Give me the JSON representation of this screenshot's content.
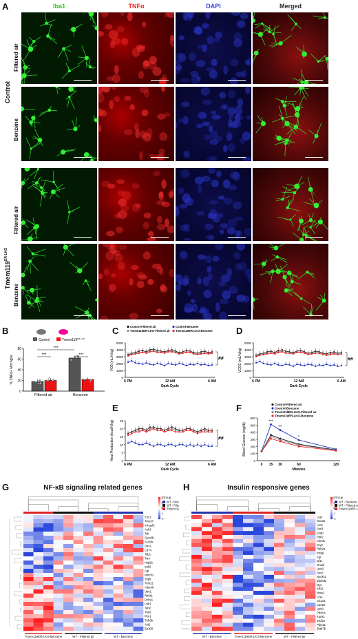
{
  "panel_labels": [
    "A",
    "B",
    "C",
    "D",
    "E",
    "F",
    "G",
    "H"
  ],
  "panel_a": {
    "columns": [
      {
        "label": "Iba1",
        "color": "#22cc22"
      },
      {
        "label": "TNFα",
        "color": "#ee2222"
      },
      {
        "label": "DAPI",
        "color": "#3344dd"
      },
      {
        "label": "Merged",
        "color": "#222222"
      }
    ],
    "groups": [
      {
        "label": "Control",
        "rows": [
          "Filtered air",
          "Benzene"
        ]
      },
      {
        "label": "Tmem119",
        "label_sup": "ER-LKO",
        "rows": [
          "Filtered air",
          "Benzene"
        ]
      }
    ]
  },
  "panel_b": {
    "ylabel": "% TNFα+ Microglia",
    "legend": [
      {
        "name": "Control",
        "color": "#555555"
      },
      {
        "name": "Tmem119",
        "sup": "ER-LKO",
        "color": "#ee1111"
      }
    ],
    "sig": [
      "***",
      "***",
      "***"
    ],
    "chart_data": {
      "type": "bar",
      "categories": [
        "Filtered air",
        "Benzene"
      ],
      "series": [
        {
          "name": "Control",
          "values": [
            18,
            62
          ]
        },
        {
          "name": "Tmem119ER-LKO",
          "values": [
            20,
            22
          ]
        }
      ],
      "ylim": [
        0,
        80
      ],
      "yticks": [
        0,
        20,
        40,
        60,
        80
      ]
    }
  },
  "panel_c": {
    "legend": [
      "Control-Filtered air",
      "Control-Benzene",
      "Tmem119ER-LKO-Filtered air",
      "Tmem119ER-LKO-Benzene"
    ],
    "ylabel": "VO2 (mL/h/kg)",
    "xlabel": "Dark Cycle",
    "xticks": [
      "6 PM",
      "12 AM",
      "6 AM"
    ],
    "yticks": [
      "0",
      "1000",
      "2000",
      "3000",
      "4000",
      "5000"
    ],
    "sig": "##",
    "chart_data": {
      "type": "line",
      "ylim": [
        0,
        5000
      ],
      "series": [
        {
          "name": "Control-Filtered air",
          "color": "#111111",
          "values": [
            3300,
            3500,
            3600,
            3800,
            3900,
            3700,
            4000,
            4100,
            3900,
            3800,
            3700,
            3900,
            4000,
            3800,
            3600,
            3700,
            3900,
            3800,
            3600,
            3500,
            3700,
            3800,
            3600,
            3700
          ]
        },
        {
          "name": "Control-Benzene",
          "color": "#2233bb",
          "values": [
            2200,
            2400,
            2100,
            2000,
            1900,
            2100,
            1900,
            1800,
            2000,
            1900,
            1700,
            2000,
            1900,
            1800,
            2000,
            1900,
            1700,
            1900,
            1800,
            2000,
            1800,
            1900,
            1700,
            1800
          ]
        },
        {
          "name": "Tmem119ER-LKO-Filtered air",
          "color": "#888888",
          "values": [
            3200,
            3400,
            3500,
            3600,
            3700,
            3600,
            3800,
            3900,
            3700,
            3700,
            3600,
            3800,
            3800,
            3700,
            3500,
            3600,
            3700,
            3700,
            3500,
            3400,
            3500,
            3600,
            3500,
            3600
          ]
        },
        {
          "name": "Tmem119ER-LKO-Benzene",
          "color": "#ee2222",
          "values": [
            3100,
            3300,
            3400,
            3500,
            3600,
            3500,
            3700,
            3800,
            3600,
            3600,
            3500,
            3700,
            3700,
            3600,
            3400,
            3500,
            3600,
            3600,
            3400,
            3300,
            3400,
            3500,
            3400,
            3500
          ]
        }
      ]
    }
  },
  "panel_d": {
    "ylabel": "VCO2 (mL/h/kg)",
    "xlabel": "Dark Cycle",
    "xticks": [
      "6 PM",
      "12 AM",
      "6 AM"
    ],
    "yticks": [
      "0",
      "1000",
      "2000",
      "3000",
      "4000",
      "5000"
    ],
    "sig": "##",
    "chart_data": {
      "type": "line",
      "ylim": [
        0,
        5000
      ],
      "series": [
        {
          "name": "Control-Filtered air",
          "color": "#111111",
          "values": [
            3200,
            3400,
            3500,
            3700,
            3800,
            3600,
            3900,
            4000,
            3800,
            3700,
            3600,
            3800,
            3900,
            3700,
            3500,
            3600,
            3800,
            3700,
            3500,
            3400,
            3600,
            3700,
            3500,
            3600
          ]
        },
        {
          "name": "Control-Benzene",
          "color": "#2233bb",
          "values": [
            2100,
            2300,
            2000,
            1900,
            1800,
            2000,
            1800,
            1700,
            1900,
            1800,
            1600,
            1900,
            1800,
            1700,
            1900,
            1800,
            1600,
            1800,
            1700,
            1900,
            1700,
            1800,
            1600,
            1700
          ]
        },
        {
          "name": "Tmem119ER-LKO-Filtered air",
          "color": "#888888",
          "values": [
            3100,
            3300,
            3400,
            3500,
            3600,
            3500,
            3700,
            3800,
            3600,
            3600,
            3500,
            3700,
            3700,
            3600,
            3400,
            3500,
            3600,
            3600,
            3400,
            3300,
            3400,
            3500,
            3400,
            3500
          ]
        },
        {
          "name": "Tmem119ER-LKO-Benzene",
          "color": "#ee2222",
          "values": [
            3000,
            3200,
            3300,
            3400,
            3500,
            3400,
            3600,
            3700,
            3500,
            3500,
            3400,
            3600,
            3600,
            3500,
            3300,
            3400,
            3500,
            3500,
            3300,
            3200,
            3300,
            3400,
            3300,
            3400
          ]
        }
      ]
    }
  },
  "panel_e": {
    "ylabel": "Heat Production (kcal/h/kg)",
    "xlabel": "Dark Cycle",
    "xticks": [
      "6 PM",
      "12 AM",
      "6 AM"
    ],
    "yticks": [
      "0",
      "5",
      "10",
      "15",
      "20",
      "25"
    ],
    "sig": "##",
    "chart_data": {
      "type": "line",
      "ylim": [
        0,
        25
      ],
      "series": [
        {
          "name": "Control-Filtered air",
          "color": "#111111",
          "values": [
            17,
            18,
            19,
            20,
            20,
            19,
            21,
            21,
            20,
            20,
            19,
            20,
            21,
            20,
            19,
            19,
            20,
            20,
            19,
            18,
            19,
            20,
            19,
            19
          ]
        },
        {
          "name": "Control-Benzene",
          "color": "#2233bb",
          "values": [
            11,
            12,
            11,
            10,
            10,
            11,
            10,
            9,
            10,
            10,
            9,
            10,
            10,
            9,
            10,
            10,
            9,
            10,
            9,
            10,
            9,
            10,
            9,
            9
          ]
        },
        {
          "name": "Tmem119ER-LKO-Filtered air",
          "color": "#888888",
          "values": [
            16,
            17,
            18,
            19,
            19,
            18,
            20,
            20,
            19,
            19,
            18,
            19,
            20,
            19,
            18,
            18,
            19,
            19,
            18,
            17,
            18,
            19,
            18,
            18
          ]
        },
        {
          "name": "Tmem119ER-LKO-Benzene",
          "color": "#ee2222",
          "values": [
            16,
            17,
            18,
            18,
            19,
            18,
            19,
            20,
            19,
            19,
            18,
            19,
            19,
            18,
            18,
            18,
            19,
            19,
            18,
            17,
            18,
            18,
            18,
            18
          ]
        }
      ]
    }
  },
  "panel_f": {
    "legend": [
      "Control-Filtered air",
      "Control-Benzene",
      "Tmem119ER-LKO-Filtered air",
      "Tmem119ER-LKO-Benzene"
    ],
    "ylabel": "Blood Glucose (mg/dl)",
    "xlabel": "Minutes",
    "sig": [
      "***",
      "***",
      "*"
    ],
    "chart_data": {
      "type": "line",
      "x": [
        0,
        15,
        30,
        60,
        120
      ],
      "xlim": [
        0,
        120
      ],
      "ylim": [
        0,
        600
      ],
      "yticks": [
        0,
        100,
        200,
        300,
        400,
        500,
        600
      ],
      "series": [
        {
          "name": "Control-Filtered air",
          "color": "#111111",
          "values": [
            130,
            360,
            310,
            230,
            150
          ]
        },
        {
          "name": "Control-Benzene",
          "color": "#2233bb",
          "values": [
            135,
            510,
            430,
            290,
            160
          ]
        },
        {
          "name": "Tmem119ER-LKO-Filtered air",
          "color": "#888888",
          "values": [
            128,
            340,
            290,
            220,
            145
          ]
        },
        {
          "name": "Tmem119ER-LKO-Benzene",
          "color": "#ee2222",
          "values": [
            132,
            310,
            270,
            200,
            140
          ]
        }
      ]
    }
  },
  "panel_g": {
    "title": "NF-κB signaling related genes",
    "genes": [
      "Eric1",
      "Trim37",
      "Arhgef2",
      "Ank3",
      "Tek",
      "Gprc5b",
      "S100b",
      "Ddx1",
      "Cd74",
      "Tab1",
      "Tom",
      "Hspb1",
      "Irak2",
      "Agt",
      "Notch2",
      "Trip6",
      "Trim21",
      "Adam8",
      "Ube1",
      "Rbck1",
      "Dclre1",
      "Pak1",
      "Tab2",
      "Traf2",
      "Pkn1",
      "Tnfr5b",
      "Akt2",
      "Ep300"
    ],
    "group_labels": [
      "Tmem119ER-LKO-Benzene",
      "WT - Filtered air",
      "WT - Benzene"
    ],
    "legend_title": "Group",
    "legend": [
      "WT - Benzene",
      "WT - Filtered air",
      "Tmem119ER-LKO-Benzene"
    ],
    "scale": [
      "2",
      "1",
      "0",
      "-1",
      "-2"
    ]
  },
  "panel_h": {
    "title": "Insulin responsive genes",
    "genes": [
      "Lepr",
      "Ncoa5",
      "Arc3",
      "Sorl1",
      "Scap",
      "Pdk2",
      "Cited1",
      "Cry2",
      "Rab2a",
      "Insig1",
      "Agt",
      "Igf1r",
      "Gnai2",
      "Lpin2",
      "Snx5",
      "Nucks1",
      "Zfp36l2",
      "Ogt",
      "Klf15",
      "Nrsn2",
      "Cry1",
      "Slc2a1",
      "Cpeb2",
      "Lpin1",
      "Pik3ca",
      "Kank1",
      "Sh2b2",
      "Pfpn11",
      "Zbtb7b"
    ],
    "group_labels": [
      "WT - Benzene",
      "Tmem119ER-LKO-Benzene",
      "WT - Filtered air"
    ],
    "legend_title": "Group",
    "legend": [
      "WT - Benzene",
      "WT - Filtered air",
      "Tmem119ER-LKO-Benzene"
    ],
    "scale": [
      "2",
      "1",
      "0",
      "-1",
      "-2"
    ]
  }
}
